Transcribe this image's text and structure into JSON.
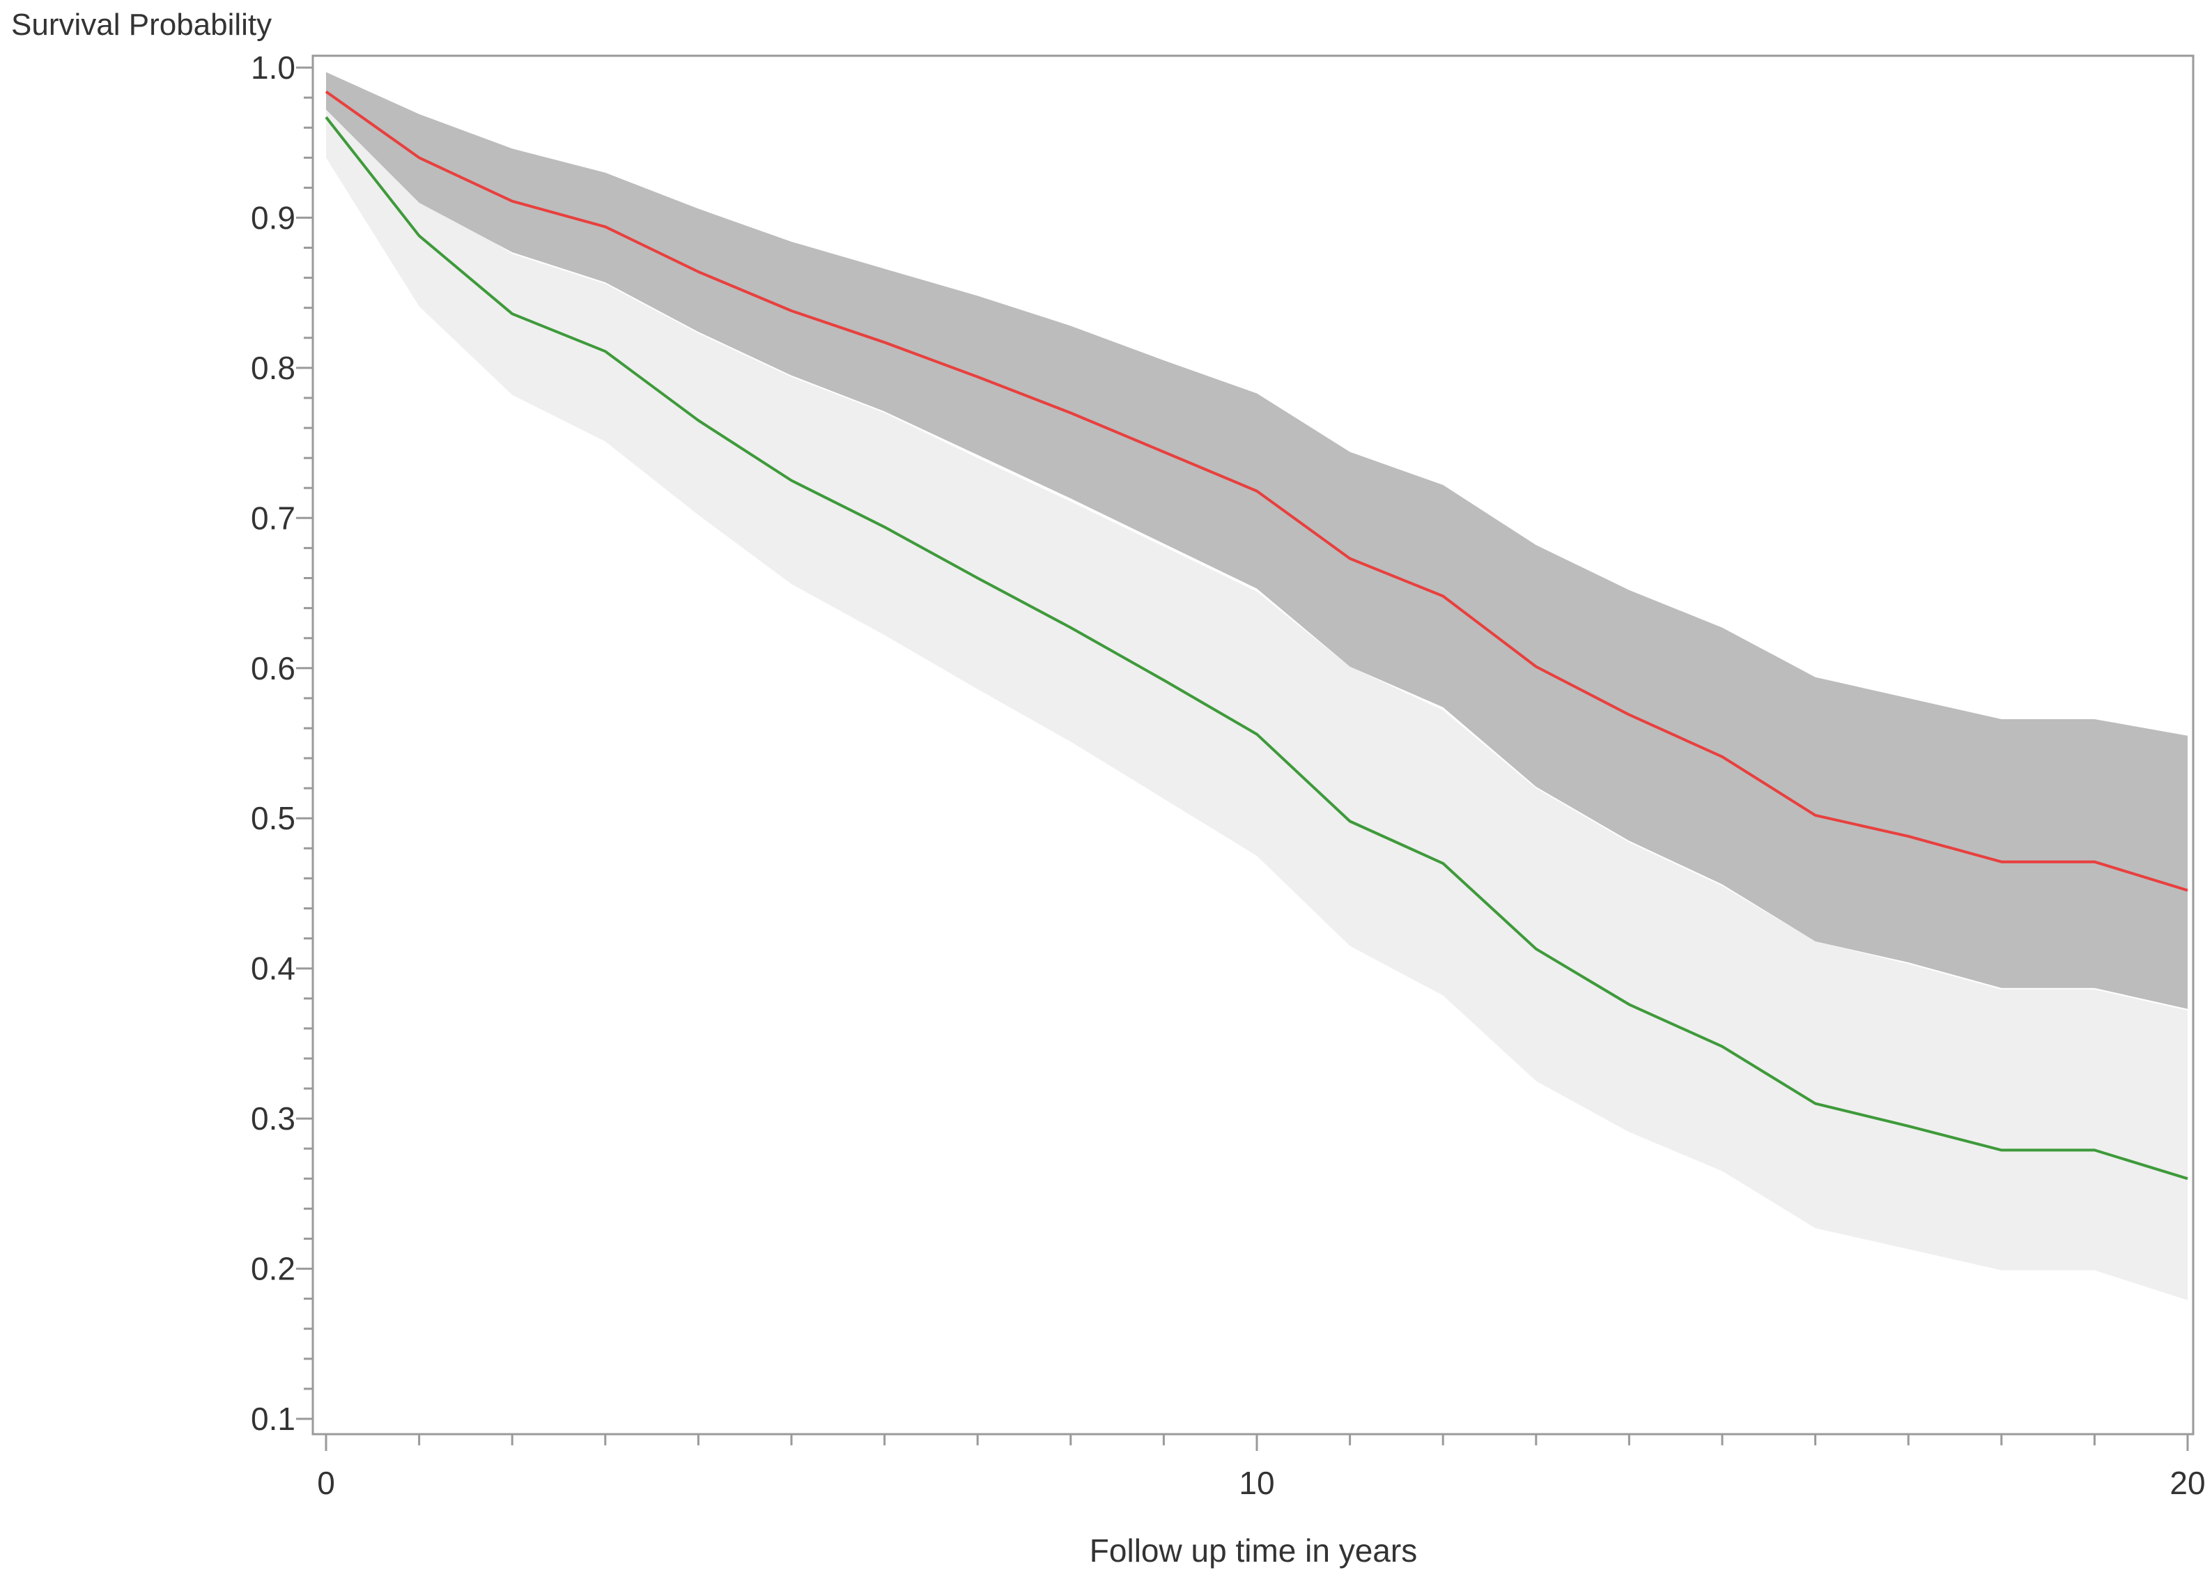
{
  "chart_data": {
    "type": "line",
    "title": "",
    "xlabel": "Follow up time in years",
    "ylabel": "Survival Probability",
    "xlim": [
      0,
      20
    ],
    "ylim": [
      0.1,
      1.0
    ],
    "x_ticks": [
      "0",
      "10",
      "20"
    ],
    "y_ticks": [
      "0.1",
      "0.2",
      "0.3",
      "0.4",
      "0.5",
      "0.6",
      "0.7",
      "0.8",
      "0.9",
      "1.0"
    ],
    "grid": false,
    "legend": "none",
    "x": [
      0,
      1,
      2,
      3,
      4,
      5,
      6,
      7,
      8,
      9,
      10,
      11,
      12,
      13,
      14,
      15,
      16,
      17,
      18,
      19,
      20
    ],
    "series": [
      {
        "color": "#e8403e",
        "values": [
          0.984,
          0.94,
          0.911,
          0.894,
          0.864,
          0.838,
          0.817,
          0.794,
          0.77,
          0.744,
          0.718,
          0.673,
          0.648,
          0.601,
          0.569,
          0.541,
          0.502,
          0.488,
          0.471,
          0.471,
          0.452
        ],
        "lower": [
          0.972,
          0.91,
          0.877,
          0.857,
          0.824,
          0.795,
          0.771,
          0.742,
          0.713,
          0.683,
          0.653,
          0.601,
          0.574,
          0.521,
          0.485,
          0.456,
          0.418,
          0.404,
          0.387,
          0.387,
          0.373
        ],
        "upper": [
          0.997,
          0.969,
          0.946,
          0.93,
          0.906,
          0.884,
          0.866,
          0.848,
          0.828,
          0.805,
          0.783,
          0.744,
          0.722,
          0.682,
          0.652,
          0.627,
          0.594,
          0.58,
          0.566,
          0.566,
          0.555
        ],
        "band_color": "#bcbcbc"
      },
      {
        "color": "#3e9a3a",
        "values": [
          0.967,
          0.888,
          0.836,
          0.811,
          0.765,
          0.725,
          0.694,
          0.66,
          0.627,
          0.592,
          0.556,
          0.498,
          0.47,
          0.413,
          0.376,
          0.348,
          0.31,
          0.295,
          0.279,
          0.279,
          0.26
        ],
        "lower": [
          0.94,
          0.841,
          0.782,
          0.751,
          0.702,
          0.656,
          0.622,
          0.586,
          0.551,
          0.513,
          0.475,
          0.415,
          0.382,
          0.325,
          0.291,
          0.265,
          0.227,
          0.213,
          0.199,
          0.199,
          0.179
        ],
        "upper": [
          0.984,
          0.914,
          0.876,
          0.856,
          0.823,
          0.794,
          0.77,
          0.74,
          0.711,
          0.681,
          0.651,
          0.601,
          0.572,
          0.52,
          0.484,
          0.455,
          0.418,
          0.403,
          0.386,
          0.386,
          0.372
        ],
        "band_color": "#efefef"
      }
    ]
  }
}
